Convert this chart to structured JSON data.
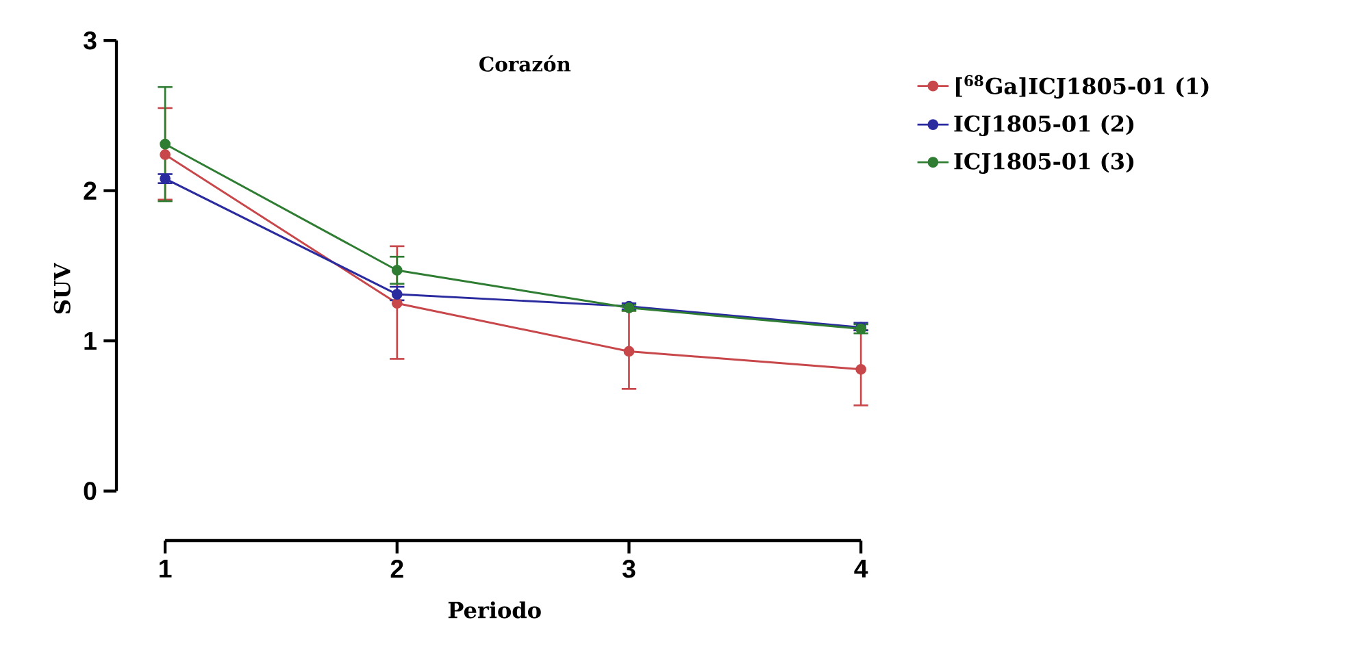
{
  "chart_data": {
    "type": "line",
    "title": "Corazón",
    "xlabel": "Periodo",
    "ylabel": "SUV",
    "x": [
      1,
      2,
      3,
      4
    ],
    "series": [
      {
        "name": "[$^{68}$Ga]ICJ1805-01 (1)",
        "color": "#c8474a",
        "values": [
          2.24,
          1.25,
          0.93,
          0.81
        ],
        "errors": [
          [
            1.94,
            2.55
          ],
          [
            0.88,
            1.63
          ],
          [
            0.68,
            1.2
          ],
          [
            0.57,
            1.07
          ]
        ]
      },
      {
        "name": "ICJ1805-01 (2)",
        "color": "#2b2ba0",
        "values": [
          2.08,
          1.31,
          1.23,
          1.09
        ],
        "errors": [
          [
            2.05,
            2.11
          ],
          [
            1.27,
            1.36
          ],
          [
            1.21,
            1.25
          ],
          [
            1.07,
            1.12
          ]
        ]
      },
      {
        "name": "ICJ1805-01 (3)",
        "color": "#2e7d32",
        "values": [
          2.31,
          1.47,
          1.22,
          1.08
        ],
        "errors": [
          [
            1.93,
            2.69
          ],
          [
            1.38,
            1.56
          ],
          [
            1.2,
            1.24
          ],
          [
            1.05,
            1.11
          ]
        ]
      }
    ],
    "xlim": [
      1,
      4
    ],
    "ylim": [
      0,
      3
    ],
    "xticks": [
      1,
      2,
      3,
      4
    ],
    "yticks": [
      0,
      1,
      2,
      3
    ],
    "grid": false,
    "legend": "top right",
    "marker": "circle",
    "line_style": "solid"
  }
}
